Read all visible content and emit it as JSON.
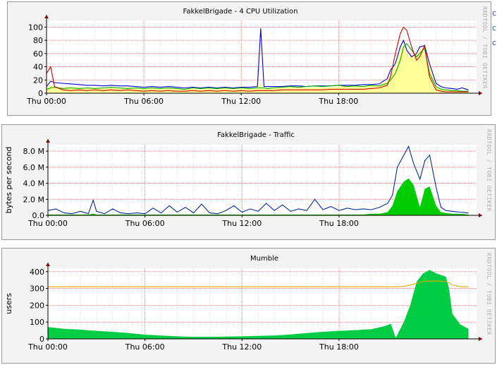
{
  "watermark": "RRDTOOL / TOBI OETIKER",
  "edge_glyphs": [
    "c",
    "c",
    "c"
  ],
  "chart_data": [
    {
      "type": "line",
      "title": "FakkelBrigade - 4 CPU Utilization",
      "xlabel": "",
      "ylabel": "",
      "xlim": [
        0,
        26.5
      ],
      "ylim": [
        0,
        110
      ],
      "yticks": [
        0,
        20,
        40,
        60,
        80,
        100
      ],
      "ytick_labels": [
        "0",
        "20",
        "40",
        "60",
        "80",
        "100"
      ],
      "xticks": [
        0,
        6,
        12,
        18
      ],
      "xtick_labels": [
        "Thu 00:00",
        "Thu 06:00",
        "Thu 12:00",
        "Thu 18:00"
      ],
      "grid": true,
      "x": [
        0,
        0.25,
        0.5,
        1,
        1.5,
        2,
        2.5,
        3,
        3.5,
        4,
        4.5,
        5,
        5.5,
        6,
        6.5,
        7,
        7.5,
        8,
        8.5,
        9,
        9.5,
        10,
        10.5,
        11,
        11.5,
        12,
        12.5,
        13,
        13.2,
        13.4,
        13.6,
        14,
        14.5,
        15,
        15.5,
        16,
        16.5,
        17,
        17.5,
        18,
        18.5,
        19,
        19.5,
        20,
        20.5,
        21,
        21.2,
        21.5,
        21.8,
        22,
        22.2,
        22.5,
        22.8,
        23,
        23.3,
        23.6,
        24,
        24.3,
        24.6,
        25,
        25.3,
        25.6,
        26
      ],
      "series": [
        {
          "color": "#ffff99",
          "style": "area",
          "values": [
            8,
            12,
            10,
            9,
            10,
            9,
            8,
            9,
            8,
            9,
            8,
            9,
            8,
            7,
            8,
            7,
            8,
            7,
            6,
            7,
            6,
            7,
            6,
            7,
            6,
            7,
            7,
            8,
            15,
            8,
            8,
            8,
            8,
            9,
            9,
            8,
            9,
            9,
            9,
            10,
            10,
            10,
            10,
            11,
            12,
            18,
            30,
            40,
            65,
            75,
            60,
            55,
            60,
            65,
            70,
            40,
            10,
            8,
            6,
            5,
            4,
            4,
            3
          ]
        },
        {
          "color": "#0000cc",
          "style": "line",
          "values": [
            10,
            18,
            16,
            15,
            14,
            13,
            12,
            12,
            11,
            12,
            11,
            11,
            10,
            9,
            10,
            9,
            10,
            9,
            8,
            9,
            8,
            9,
            8,
            9,
            8,
            9,
            9,
            10,
            98,
            10,
            10,
            10,
            10,
            11,
            11,
            10,
            11,
            11,
            11,
            12,
            12,
            12,
            13,
            13,
            14,
            22,
            35,
            45,
            70,
            80,
            65,
            55,
            60,
            70,
            72,
            45,
            15,
            10,
            8,
            7,
            6,
            8,
            5
          ]
        },
        {
          "color": "#00aa00",
          "style": "line",
          "values": [
            6,
            8,
            9,
            7,
            8,
            7,
            8,
            7,
            8,
            9,
            8,
            7,
            8,
            7,
            8,
            7,
            8,
            7,
            6,
            8,
            7,
            8,
            7,
            8,
            7,
            8,
            7,
            8,
            8,
            8,
            7,
            8,
            9,
            10,
            9,
            10,
            11,
            10,
            11,
            12,
            10,
            11,
            10,
            12,
            11,
            15,
            20,
            30,
            50,
            70,
            75,
            65,
            55,
            60,
            68,
            30,
            10,
            6,
            5,
            4,
            4,
            3,
            3
          ]
        },
        {
          "color": "#cc0000",
          "style": "line",
          "values": [
            30,
            40,
            10,
            5,
            4,
            5,
            4,
            5,
            4,
            5,
            4,
            5,
            4,
            3,
            4,
            3,
            4,
            3,
            3,
            4,
            3,
            4,
            3,
            4,
            3,
            4,
            3,
            4,
            4,
            4,
            4,
            4,
            5,
            5,
            5,
            5,
            5,
            5,
            6,
            6,
            6,
            6,
            6,
            7,
            8,
            12,
            25,
            60,
            90,
            100,
            95,
            70,
            50,
            55,
            72,
            25,
            5,
            3,
            2,
            2,
            2,
            2,
            2
          ]
        }
      ]
    },
    {
      "type": "area",
      "title": "FakkelBrigade - Traffic",
      "xlabel": "",
      "ylabel": "bytes per second",
      "xlim": [
        0,
        26.5
      ],
      "ylim": [
        0,
        8.8
      ],
      "yticks": [
        0,
        2,
        4,
        6,
        8
      ],
      "ytick_labels": [
        "0.0",
        "2.0 M",
        "4.0 M",
        "6.0 M",
        "8.0 M"
      ],
      "xticks": [
        0,
        6,
        12,
        18
      ],
      "xtick_labels": [
        "Thu 00:00",
        "Thu 06:00",
        "Thu 12:00",
        "Thu 18:00"
      ],
      "grid": true,
      "x": [
        0,
        0.5,
        1,
        1.5,
        2,
        2.5,
        2.8,
        3,
        3.5,
        4,
        4.5,
        5,
        5.5,
        6,
        6.5,
        7,
        7.5,
        8,
        8.5,
        9,
        9.5,
        10,
        10.5,
        11,
        11.5,
        12,
        12.5,
        13,
        13.5,
        14,
        14.5,
        15,
        15.5,
        16,
        16.5,
        17,
        17.5,
        18,
        18.5,
        19,
        19.5,
        20,
        20.5,
        21,
        21.3,
        21.6,
        22,
        22.3,
        22.6,
        23,
        23.3,
        23.6,
        24,
        24.3,
        24.6,
        25,
        25.5,
        26
      ],
      "series": [
        {
          "color": "#00cc00",
          "style": "area",
          "values": [
            0.1,
            0.1,
            0.1,
            0.1,
            0.1,
            0.1,
            0.2,
            0.1,
            0.1,
            0.1,
            0.1,
            0.1,
            0.1,
            0.1,
            0.1,
            0.1,
            0.1,
            0.1,
            0.1,
            0.1,
            0.1,
            0.1,
            0.1,
            0.1,
            0.1,
            0.1,
            0.1,
            0.1,
            0.1,
            0.1,
            0.1,
            0.1,
            0.1,
            0.1,
            0.1,
            0.1,
            0.1,
            0.1,
            0.1,
            0.1,
            0.1,
            0.2,
            0.2,
            0.4,
            1.2,
            3.0,
            4.2,
            4.6,
            3.8,
            1.0,
            3.3,
            3.6,
            1.2,
            0.4,
            0.3,
            0.2,
            0.2,
            0.1
          ]
        },
        {
          "color": "#002a97",
          "style": "line",
          "values": [
            0.6,
            0.8,
            0.3,
            0.2,
            0.5,
            0.2,
            1.9,
            0.5,
            0.2,
            0.8,
            0.3,
            0.2,
            0.3,
            0.2,
            0.9,
            0.3,
            1.2,
            0.4,
            1.0,
            0.3,
            1.4,
            0.3,
            0.2,
            0.6,
            1.2,
            0.4,
            0.8,
            0.5,
            1.5,
            0.6,
            1.3,
            0.5,
            0.8,
            0.6,
            2.0,
            0.7,
            1.1,
            0.6,
            0.9,
            0.7,
            0.8,
            0.7,
            1.0,
            1.5,
            2.5,
            6.0,
            7.5,
            8.6,
            6.5,
            4.5,
            6.8,
            7.5,
            3.5,
            1.0,
            0.6,
            0.5,
            0.4,
            0.3
          ]
        }
      ]
    },
    {
      "type": "area",
      "title": "Mumble",
      "xlabel": "",
      "ylabel": "users",
      "xlim": [
        0,
        26.5
      ],
      "ylim": [
        0,
        420
      ],
      "yticks": [
        0,
        100,
        200,
        300,
        400
      ],
      "ytick_labels": [
        "0",
        "100",
        "200",
        "300",
        "400"
      ],
      "xticks": [
        0,
        6,
        12,
        18
      ],
      "xtick_labels": [
        "Thu 00:00",
        "Thu 06:00",
        "Thu 12:00",
        "Thu 18:00"
      ],
      "grid": true,
      "x": [
        0,
        0.5,
        1,
        2,
        3,
        4,
        5,
        6,
        7,
        8,
        9,
        10,
        11,
        12,
        13,
        14,
        15,
        16,
        17,
        18,
        19,
        20,
        20.8,
        21.2,
        21.5,
        22,
        22.4,
        22.8,
        23.2,
        23.6,
        24,
        24.3,
        24.6,
        24.8,
        25,
        25.5,
        26
      ],
      "series": [
        {
          "color": "#00cc44",
          "style": "area",
          "values": [
            70,
            65,
            60,
            55,
            48,
            42,
            35,
            25,
            20,
            15,
            12,
            12,
            14,
            15,
            18,
            20,
            26,
            35,
            42,
            48,
            52,
            58,
            75,
            90,
            5,
            100,
            200,
            340,
            390,
            410,
            390,
            380,
            370,
            300,
            150,
            85,
            60
          ]
        },
        {
          "color": "#e6a800",
          "style": "line",
          "values": [
            310,
            310,
            310,
            310,
            310,
            310,
            310,
            310,
            310,
            310,
            310,
            310,
            310,
            310,
            310,
            310,
            310,
            310,
            310,
            310,
            310,
            310,
            310,
            310,
            310,
            312,
            320,
            330,
            340,
            345,
            345,
            343,
            340,
            335,
            320,
            310,
            310
          ]
        }
      ]
    }
  ]
}
